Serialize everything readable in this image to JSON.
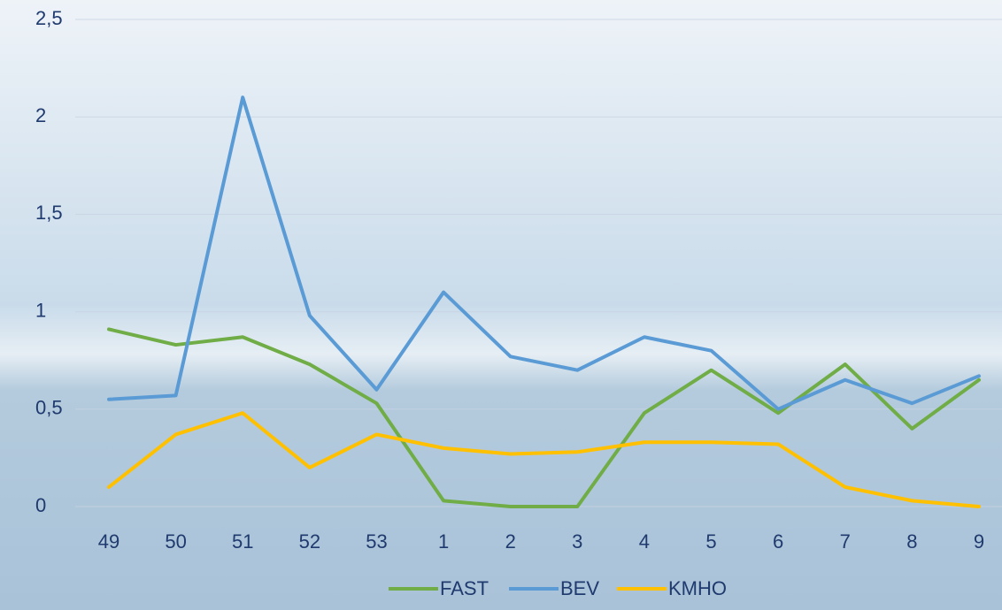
{
  "chart_data": {
    "type": "line",
    "categories": [
      "49",
      "50",
      "51",
      "52",
      "53",
      "1",
      "2",
      "3",
      "4",
      "5",
      "6",
      "7",
      "8",
      "9"
    ],
    "series": [
      {
        "name": "FAST",
        "color": "#70ad47",
        "values": [
          0.91,
          0.83,
          0.87,
          0.73,
          0.53,
          0.03,
          0,
          0,
          0.48,
          0.7,
          0.48,
          0.73,
          0.4,
          0.65
        ]
      },
      {
        "name": "BEV",
        "color": "#5b9bd5",
        "values": [
          0.55,
          0.57,
          2.1,
          0.98,
          0.6,
          1.1,
          0.77,
          0.7,
          0.87,
          0.8,
          0.5,
          0.65,
          0.53,
          0.67
        ]
      },
      {
        "name": "KMHO",
        "color": "#ffc000",
        "values": [
          0.1,
          0.37,
          0.48,
          0.2,
          0.37,
          0.3,
          0.27,
          0.28,
          0.33,
          0.33,
          0.32,
          0.1,
          0.03,
          0
        ]
      }
    ],
    "ylim": [
      0,
      2.5
    ],
    "yticks": [
      0,
      {
        "value": 0.5,
        "label": "0,5"
      },
      1,
      {
        "value": 1.5,
        "label": "1,5"
      },
      2,
      {
        "value": 2.5,
        "label": "2,5"
      }
    ],
    "grid": true,
    "legend": "bottom"
  }
}
